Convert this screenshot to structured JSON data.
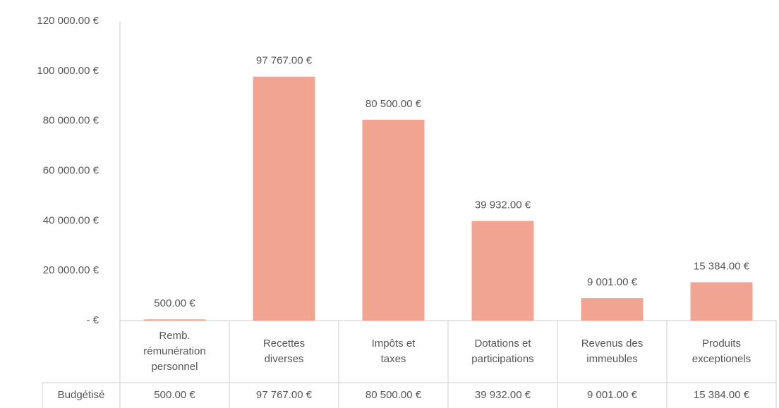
{
  "chart_data": {
    "type": "bar",
    "categories": [
      "Remb. rémunération personnel",
      "Recettes diverses",
      "Impôts et taxes",
      "Dotations et participations",
      "Revenus des immeubles",
      "Produits exceptionels"
    ],
    "series": [
      {
        "name": "Budgétisé",
        "color": "#f2a493",
        "values": [
          500,
          97767,
          80500,
          39932,
          9001,
          15384
        ],
        "value_labels": [
          "500.00 €",
          "97 767.00 €",
          "80 500.00 €",
          "39 932.00 €",
          "9 001.00 €",
          "15 384.00 €"
        ]
      }
    ],
    "ylim": [
      0,
      120000
    ],
    "yticks": [
      {
        "value": 0,
        "label": "-   €"
      },
      {
        "value": 20000,
        "label": "20 000.00 €"
      },
      {
        "value": 40000,
        "label": "40 000.00 €"
      },
      {
        "value": 60000,
        "label": "60 000.00 €"
      },
      {
        "value": 80000,
        "label": "80 000.00 €"
      },
      {
        "value": 100000,
        "label": "100 000.00 €"
      },
      {
        "value": 120000,
        "label": "120 000.00 €"
      }
    ],
    "grid": false
  }
}
